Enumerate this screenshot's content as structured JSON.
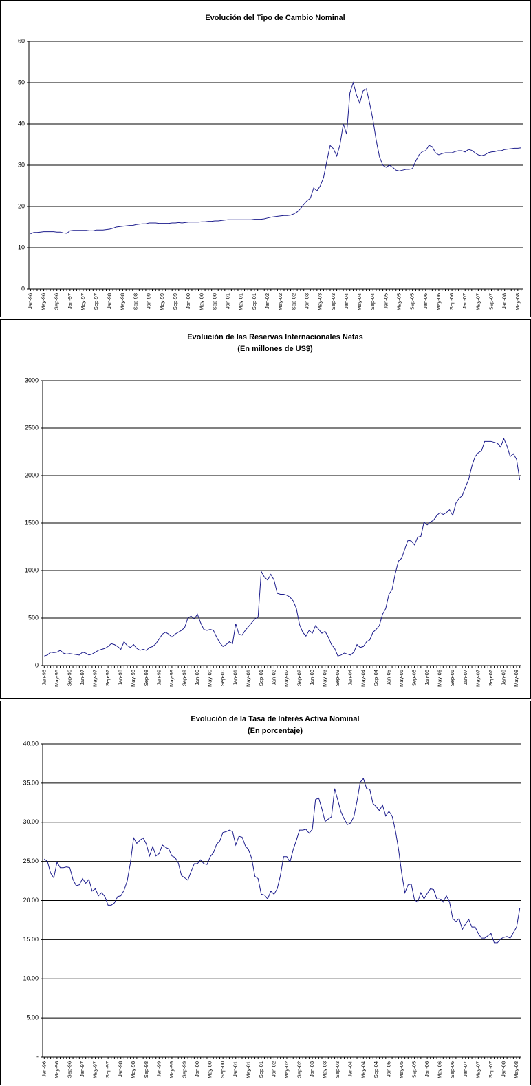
{
  "chart_data": [
    {
      "type": "line",
      "title": "Evolución del Tipo de Cambio Nominal",
      "categories": [
        "Jan-96",
        null,
        null,
        null,
        "May-96",
        null,
        null,
        null,
        "Sep-96",
        null,
        null,
        null,
        "Jan-97",
        null,
        null,
        null,
        "May-97",
        null,
        null,
        null,
        "Sep-97",
        null,
        null,
        null,
        "Jan-98",
        null,
        null,
        null,
        "May-98",
        null,
        null,
        null,
        "Sep-98",
        null,
        null,
        null,
        "Jan-99",
        null,
        null,
        null,
        "May-99",
        null,
        null,
        null,
        "Sep-99",
        null,
        null,
        null,
        "Jan-00",
        null,
        null,
        null,
        "May-00",
        null,
        null,
        null,
        "Sep-00",
        null,
        null,
        null,
        "Jan-01",
        null,
        null,
        null,
        "May-01",
        null,
        null,
        null,
        "Sep-01",
        null,
        null,
        null,
        "Jan-02",
        null,
        null,
        null,
        "May-02",
        null,
        null,
        null,
        "Sep-02",
        null,
        null,
        null,
        "Jan-03",
        null,
        null,
        null,
        "May-03",
        null,
        null,
        null,
        "Sep-03",
        null,
        null,
        null,
        "Jan-04",
        null,
        null,
        null,
        "May-04",
        null,
        null,
        null,
        "Sep-04",
        null,
        null,
        null,
        "Jan-05",
        null,
        null,
        null,
        "May-05",
        null,
        null,
        null,
        "Sep-05",
        null,
        null,
        null,
        "Jan-06",
        null,
        null,
        null,
        "May-06",
        null,
        null,
        null,
        "Sep-06",
        null,
        null,
        null,
        "Jan-07",
        null,
        null,
        null,
        "May-07",
        null,
        null,
        null,
        "Sep-07",
        null,
        null,
        null,
        "Jan-08",
        null,
        null,
        null,
        "May-08",
        null
      ],
      "values": [
        13.4,
        13.7,
        13.7,
        13.8,
        13.9,
        13.9,
        13.9,
        13.9,
        13.8,
        13.8,
        13.6,
        13.5,
        14.1,
        14.2,
        14.2,
        14.2,
        14.2,
        14.2,
        14.1,
        14.1,
        14.3,
        14.3,
        14.3,
        14.4,
        14.5,
        14.7,
        15.0,
        15.1,
        15.2,
        15.3,
        15.4,
        15.4,
        15.6,
        15.7,
        15.8,
        15.8,
        16.0,
        16.0,
        16.0,
        15.9,
        15.9,
        15.9,
        15.9,
        16.0,
        16.0,
        16.1,
        16.0,
        16.1,
        16.2,
        16.2,
        16.2,
        16.2,
        16.3,
        16.3,
        16.4,
        16.4,
        16.5,
        16.5,
        16.6,
        16.7,
        16.8,
        16.8,
        16.8,
        16.8,
        16.8,
        16.8,
        16.8,
        16.8,
        16.9,
        16.9,
        16.9,
        17.0,
        17.2,
        17.4,
        17.5,
        17.6,
        17.7,
        17.8,
        17.8,
        17.9,
        18.2,
        18.7,
        19.5,
        20.5,
        21.4,
        22.0,
        24.5,
        23.8,
        25.0,
        27.0,
        31.0,
        34.8,
        34.0,
        32.2,
        35.0,
        40.0,
        37.5,
        47.5,
        50.0,
        47.0,
        45.0,
        48.0,
        48.5,
        45.0,
        41.0,
        36.0,
        32.0,
        30.0,
        29.5,
        30.0,
        29.5,
        28.8,
        28.6,
        28.8,
        29.0,
        29.0,
        29.2,
        31.0,
        32.5,
        33.3,
        33.5,
        34.8,
        34.5,
        33.0,
        32.5,
        32.8,
        33.0,
        33.0,
        33.0,
        33.3,
        33.5,
        33.5,
        33.2,
        33.8,
        33.6,
        33.0,
        32.5,
        32.3,
        32.5,
        33.0,
        33.2,
        33.3,
        33.5,
        33.5,
        33.8,
        33.9,
        34.0,
        34.1,
        34.1,
        34.2
      ],
      "color": "#1c1c8c",
      "ylim": [
        0,
        60
      ],
      "yticks": [
        0,
        10,
        20,
        30,
        40,
        50,
        60
      ],
      "grid": true
    },
    {
      "type": "line",
      "title": "Evolución de las Reservas Internacionales Netas",
      "subtitle": "(En millones de US$)",
      "categories": [
        "Jan-96",
        null,
        null,
        null,
        "May-96",
        null,
        null,
        null,
        "Sep-96",
        null,
        null,
        null,
        "Jan-97",
        null,
        null,
        null,
        "May-97",
        null,
        null,
        null,
        "Sep-97",
        null,
        null,
        null,
        "Jan-98",
        null,
        null,
        null,
        "May-98",
        null,
        null,
        null,
        "Sep-98",
        null,
        null,
        null,
        "Jan-99",
        null,
        null,
        null,
        "May-99",
        null,
        null,
        null,
        "Sep-99",
        null,
        null,
        null,
        "Jan-00",
        null,
        null,
        null,
        "May-00",
        null,
        null,
        null,
        "Sep-00",
        null,
        null,
        null,
        "Jan-01",
        null,
        null,
        null,
        "May-01",
        null,
        null,
        null,
        "Sep-01",
        null,
        null,
        null,
        "Jan-02",
        null,
        null,
        null,
        "May-02",
        null,
        null,
        null,
        "Sep-02",
        null,
        null,
        null,
        "Jan-03",
        null,
        null,
        null,
        "May-03",
        null,
        null,
        null,
        "Sep-03",
        null,
        null,
        null,
        "Jan-04",
        null,
        null,
        null,
        "May-04",
        null,
        null,
        null,
        "Sep-04",
        null,
        null,
        null,
        "Jan-05",
        null,
        null,
        null,
        "May-05",
        null,
        null,
        null,
        "Sep-05",
        null,
        null,
        null,
        "Jan-06",
        null,
        null,
        null,
        "May-06",
        null,
        null,
        null,
        "Sep-06",
        null,
        null,
        null,
        "Jan-07",
        null,
        null,
        null,
        "May-07",
        null,
        null,
        null,
        "Sep-07",
        null,
        null,
        null,
        "Jan-08",
        null,
        null,
        null,
        "May-08",
        null
      ],
      "values": [
        100,
        110,
        140,
        135,
        140,
        160,
        130,
        120,
        125,
        120,
        115,
        110,
        140,
        130,
        110,
        120,
        140,
        160,
        170,
        180,
        200,
        230,
        220,
        200,
        170,
        250,
        210,
        190,
        220,
        180,
        160,
        170,
        160,
        190,
        200,
        230,
        280,
        330,
        350,
        330,
        300,
        330,
        350,
        370,
        400,
        500,
        520,
        490,
        540,
        450,
        380,
        370,
        380,
        370,
        300,
        240,
        200,
        220,
        250,
        230,
        440,
        330,
        320,
        370,
        410,
        450,
        490,
        510,
        990,
        930,
        900,
        960,
        900,
        760,
        750,
        750,
        740,
        720,
        680,
        600,
        430,
        350,
        310,
        370,
        340,
        420,
        380,
        340,
        360,
        300,
        220,
        180,
        100,
        110,
        130,
        120,
        110,
        140,
        220,
        190,
        200,
        250,
        270,
        350,
        380,
        420,
        540,
        600,
        750,
        800,
        970,
        1100,
        1130,
        1230,
        1320,
        1310,
        1270,
        1350,
        1360,
        1510,
        1480,
        1510,
        1530,
        1580,
        1610,
        1590,
        1610,
        1640,
        1580,
        1710,
        1760,
        1790,
        1880,
        1960,
        2100,
        2200,
        2240,
        2260,
        2360,
        2360,
        2360,
        2350,
        2340,
        2300,
        2390,
        2310,
        2200,
        2230,
        2170,
        1950
      ],
      "color": "#1c1c8c",
      "ylim": [
        0,
        3000
      ],
      "yticks": [
        0,
        500,
        1000,
        1500,
        2000,
        2500,
        3000
      ],
      "grid": true
    },
    {
      "type": "line",
      "title": "Evolución de la Tasa de Interés Activa Nominal",
      "subtitle": "(En porcentaje)",
      "categories": [
        "Jan-96",
        null,
        null,
        null,
        "May-96",
        null,
        null,
        null,
        "Sep-96",
        null,
        null,
        null,
        "Jan-97",
        null,
        null,
        null,
        "May-97",
        null,
        null,
        null,
        "Sep-97",
        null,
        null,
        null,
        "Jan-98",
        null,
        null,
        null,
        "May-98",
        null,
        null,
        null,
        "Sep-98",
        null,
        null,
        null,
        "Jan-99",
        null,
        null,
        null,
        "May-99",
        null,
        null,
        null,
        "Sep-99",
        null,
        null,
        null,
        "Jan-00",
        null,
        null,
        null,
        "May-00",
        null,
        null,
        null,
        "Sep-00",
        null,
        null,
        null,
        "Jan-01",
        null,
        null,
        null,
        "May-01",
        null,
        null,
        null,
        "Sep-01",
        null,
        null,
        null,
        "Jan-02",
        null,
        null,
        null,
        "May-02",
        null,
        null,
        null,
        "Sep-02",
        null,
        null,
        null,
        "Jan-03",
        null,
        null,
        null,
        "May-03",
        null,
        null,
        null,
        "Sep-03",
        null,
        null,
        null,
        "Jan-04",
        null,
        null,
        null,
        "May-04",
        null,
        null,
        null,
        "Sep-04",
        null,
        null,
        null,
        "Jan-05",
        null,
        null,
        null,
        "May-05",
        null,
        null,
        null,
        "Sep-05",
        null,
        null,
        null,
        "Jan-06",
        null,
        null,
        null,
        "May-06",
        null,
        null,
        null,
        "Sep-06",
        null,
        null,
        null,
        "Jan-07",
        null,
        null,
        null,
        "May-07",
        null,
        null,
        null,
        "Sep-07",
        null,
        null,
        null,
        "Jan-08",
        null,
        null,
        null,
        "May-08",
        null
      ],
      "values": [
        25.3,
        25.0,
        23.5,
        22.9,
        24.9,
        24.2,
        24.2,
        24.3,
        24.2,
        22.7,
        21.9,
        22.0,
        22.8,
        22.2,
        22.7,
        21.2,
        21.5,
        20.6,
        21.0,
        20.5,
        19.4,
        19.4,
        19.7,
        20.5,
        20.6,
        21.3,
        22.5,
        24.8,
        28.0,
        27.3,
        27.7,
        28.0,
        27.2,
        25.7,
        26.9,
        25.7,
        26.0,
        27.1,
        26.8,
        26.6,
        25.7,
        25.5,
        24.8,
        23.2,
        22.9,
        22.6,
        23.7,
        24.7,
        24.7,
        25.2,
        24.7,
        24.6,
        25.6,
        26.1,
        27.2,
        27.6,
        28.7,
        28.8,
        29.0,
        28.8,
        27.1,
        28.2,
        28.1,
        27.0,
        26.5,
        25.4,
        23.1,
        22.8,
        20.8,
        20.7,
        20.2,
        21.2,
        20.8,
        21.5,
        23.2,
        25.6,
        25.6,
        24.9,
        26.5,
        27.7,
        29.0,
        29.0,
        29.1,
        28.6,
        29.1,
        32.9,
        33.1,
        31.7,
        30.1,
        30.4,
        30.7,
        34.3,
        32.8,
        31.3,
        30.4,
        29.7,
        29.9,
        30.7,
        32.7,
        35.1,
        35.6,
        34.3,
        34.2,
        32.4,
        32.0,
        31.5,
        32.2,
        30.8,
        31.4,
        30.8,
        29.0,
        26.6,
        23.5,
        21.0,
        22.0,
        22.1,
        20.1,
        19.8,
        21.0,
        20.2,
        20.9,
        21.5,
        21.4,
        20.2,
        20.2,
        19.8,
        20.6,
        19.8,
        17.7,
        17.3,
        17.7,
        16.3,
        17.0,
        17.6,
        16.6,
        16.6,
        15.8,
        15.2,
        15.2,
        15.5,
        15.8,
        14.6,
        14.6,
        15.1,
        15.3,
        15.4,
        15.2,
        15.9,
        16.6,
        19.0
      ],
      "color": "#1c1c8c",
      "ylim": [
        0,
        40
      ],
      "yticks": [
        {
          "value": 0,
          "label": "-"
        },
        {
          "value": 5,
          "label": "5.00"
        },
        {
          "value": 10,
          "label": "10.00"
        },
        {
          "value": 15,
          "label": "15.00"
        },
        {
          "value": 20,
          "label": "20.00"
        },
        {
          "value": 25,
          "label": "25.00"
        },
        {
          "value": 30,
          "label": "30.00"
        },
        {
          "value": 35,
          "label": "35.00"
        },
        {
          "value": 40,
          "label": "40.00"
        }
      ],
      "grid": true
    }
  ]
}
